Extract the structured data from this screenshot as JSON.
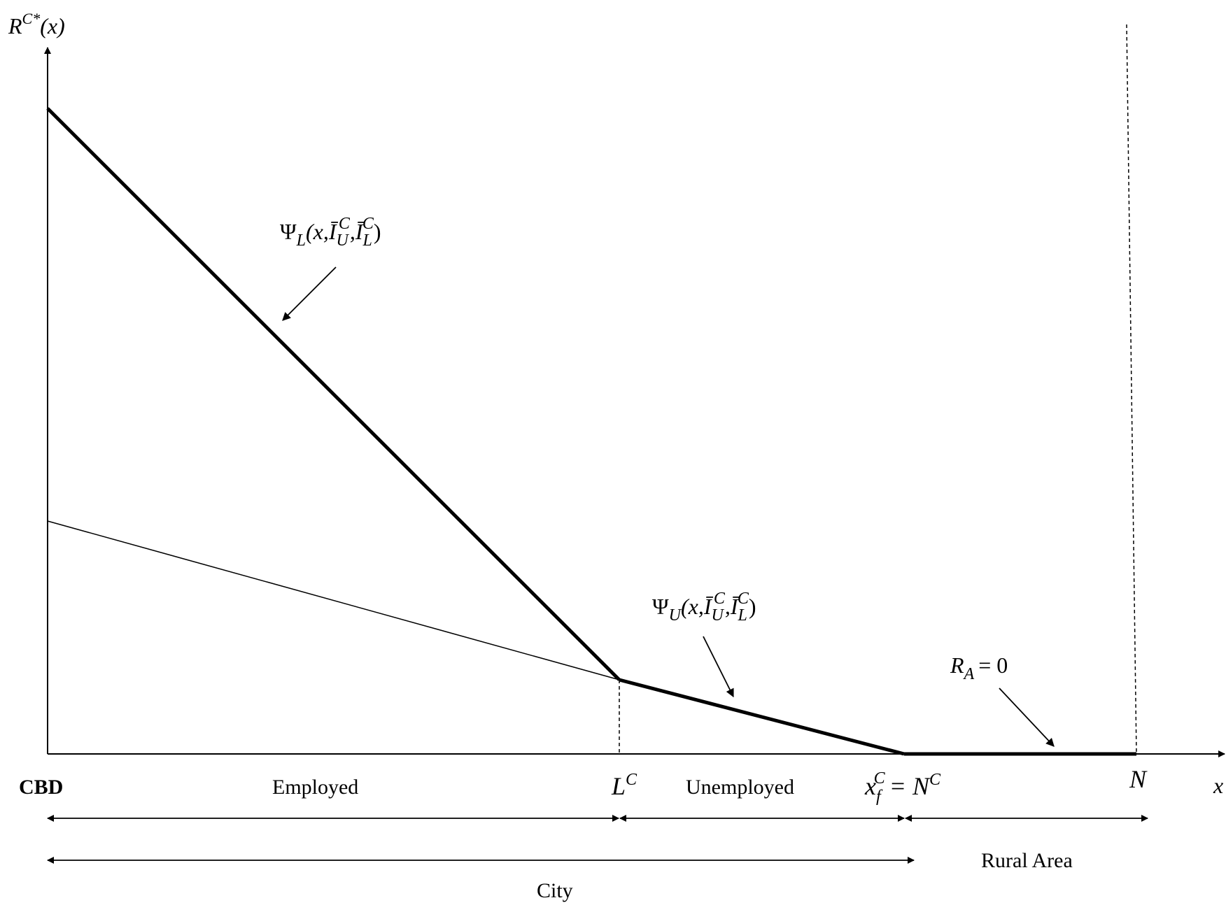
{
  "y_axis_label": {
    "main": "R",
    "sup": "C*",
    "arg": "(x)"
  },
  "x_axis_label": "x",
  "origin_label": "CBD",
  "labels": {
    "psi_L": {
      "psi": "Ψ",
      "sub": "L",
      "args_open": "(x,",
      "ibar_U": "Ī",
      "sub_U": "U",
      "sup_U": "C",
      "comma": ",",
      "ibar_L": "Ī",
      "sub_L": "L",
      "sup_L": "C",
      "close": ")"
    },
    "psi_U": {
      "psi": "Ψ",
      "sub": "U",
      "args_open": "(x,",
      "ibar_U": "Ī",
      "sub_U": "U",
      "sup_U": "C",
      "comma": ",",
      "ibar_L": "Ī",
      "sub_L": "L",
      "sup_L": "C",
      "close": ")"
    },
    "rural_rent": {
      "main": "R",
      "sub": "A",
      "rest": "= 0"
    },
    "L_C": {
      "main": "L",
      "sup": "C"
    },
    "x_f": {
      "main": "x",
      "sub": "f",
      "sup": "C",
      "eq": "= N",
      "eq_sup": "C"
    },
    "N": "N"
  },
  "zones": {
    "employed": "Employed",
    "unemployed": "Unemployed",
    "rural": "Rural Area",
    "city": "City"
  },
  "style": {
    "line_color": "#000000",
    "background": "#ffffff"
  }
}
